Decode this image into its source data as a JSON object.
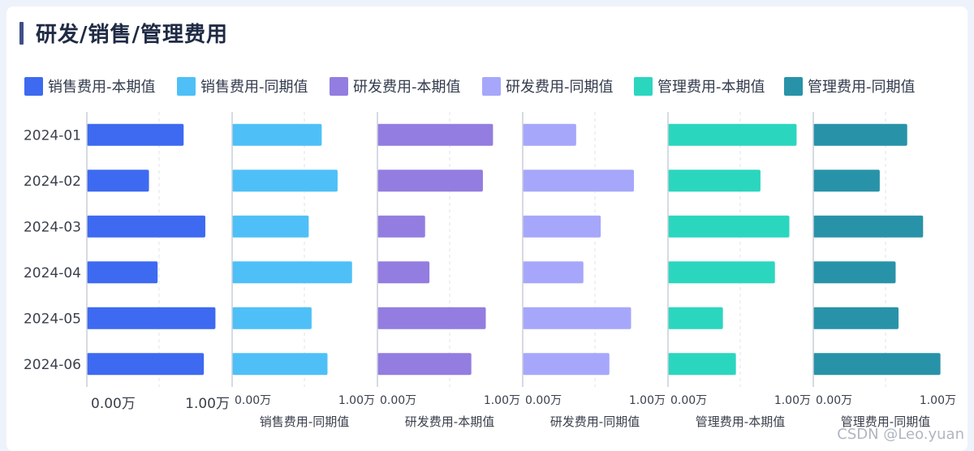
{
  "title": "研发/销售/管理费用",
  "watermark": "CSDN @Leo.yuan",
  "chart_data": {
    "type": "bar",
    "orientation": "horizontal",
    "layout": "small-multiples",
    "categories": [
      "2024-01",
      "2024-02",
      "2024-03",
      "2024-04",
      "2024-05",
      "2024-06"
    ],
    "xlim": [
      0,
      1.0
    ],
    "tick_labels": [
      "0.00万",
      "1.00万"
    ],
    "grid": "dashed vertical",
    "legend_position": "top",
    "series": [
      {
        "name": "销售费用-本期值",
        "color": "#3d6af0",
        "values": [
          0.67,
          0.43,
          0.82,
          0.49,
          0.89,
          0.81
        ],
        "axis_title": ""
      },
      {
        "name": "销售费用-同期值",
        "color": "#4ec0f7",
        "values": [
          0.62,
          0.73,
          0.53,
          0.83,
          0.55,
          0.66
        ],
        "axis_title": "销售费用-同期值"
      },
      {
        "name": "研发费用-本期值",
        "color": "#937de0",
        "values": [
          0.8,
          0.73,
          0.33,
          0.36,
          0.75,
          0.65
        ],
        "axis_title": "研发费用-本期值"
      },
      {
        "name": "研发费用-同期值",
        "color": "#a6a7fb",
        "values": [
          0.37,
          0.77,
          0.54,
          0.42,
          0.75,
          0.6
        ],
        "axis_title": "研发费用-同期值"
      },
      {
        "name": "管理费用-本期值",
        "color": "#2bd6bf",
        "values": [
          0.89,
          0.64,
          0.84,
          0.74,
          0.38,
          0.47
        ],
        "axis_title": "管理费用-本期值"
      },
      {
        "name": "管理费用-同期值",
        "color": "#2893a8",
        "values": [
          0.65,
          0.46,
          0.76,
          0.57,
          0.59,
          0.88
        ],
        "axis_title": "管理费用-同期值"
      }
    ]
  }
}
